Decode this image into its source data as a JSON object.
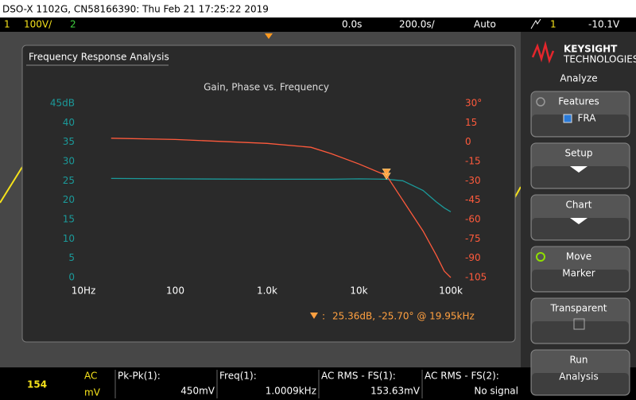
{
  "header": {
    "title": "DSO-X 1102G, CN58166390: Thu Feb 21 17:25:22 2019"
  },
  "status_bar": {
    "channel1": "1",
    "scale1": "100V/",
    "channel2": "2",
    "time_offset": "0.0s",
    "time_scale": "200.0s/",
    "trigger_mode": "Auto",
    "trigger_source": "1",
    "trigger_level": "-10.1V"
  },
  "window": {
    "title": "Frequency Response Analysis"
  },
  "chart_data": {
    "type": "line",
    "title": "Gain, Phase vs. Frequency",
    "x": [
      20,
      100,
      1000,
      3000,
      5000,
      10000,
      20000,
      30000,
      50000,
      70000,
      85000,
      100000
    ],
    "log_x": true,
    "xlim": [
      10,
      100000
    ],
    "xticks": [
      {
        "value": 10,
        "label": "10Hz"
      },
      100,
      {
        "value": 1000,
        "label": "1.0k"
      },
      {
        "value": 10000,
        "label": "10k"
      },
      {
        "value": 100000,
        "label": "100k"
      }
    ],
    "ylim": [
      0,
      45
    ],
    "yticks": [
      0,
      5,
      10,
      15,
      20,
      25,
      30,
      35,
      40,
      {
        "value": 45,
        "label": "45dB"
      }
    ],
    "y2lim": [
      -105,
      30
    ],
    "y2ticks": [
      -105,
      -90,
      -75,
      -60,
      -45,
      -30,
      -15,
      0,
      15,
      {
        "value": 30,
        "label": "30°"
      }
    ],
    "series": [
      {
        "color": "#1b9a9a",
        "axis": "y",
        "values": [
          25.6,
          25.5,
          25.4,
          25.4,
          25.4,
          25.5,
          25.4,
          25.0,
          22.5,
          19.5,
          18.0,
          17.0
        ]
      },
      {
        "color": "#ff5a3c",
        "axis": "y2",
        "values": [
          3,
          2,
          -1,
          -4,
          -9,
          -17,
          -26,
          -45,
          -69,
          -88,
          -100,
          -105
        ]
      }
    ],
    "marker": {
      "x": 19950,
      "gain": 25.36,
      "phase": -25.7,
      "color": "#ffa040",
      "label": "25.36dB, -25.70° @ 19.95kHz"
    },
    "grid": false
  },
  "sidebar": {
    "brand": "KEYSIGHT",
    "brand_sub": "TECHNOLOGIES",
    "menu_title": "Analyze",
    "buttons": [
      {
        "label": "Features",
        "sub": "FRA"
      },
      {
        "label": "Setup"
      },
      {
        "label": "Chart"
      },
      {
        "label": "Move",
        "sub": "Marker"
      },
      {
        "label": "Transparent"
      },
      {
        "label": "Run",
        "sub": "Analysis"
      }
    ]
  },
  "readout": {
    "value": "154",
    "coupling": "AC",
    "unit": "mV"
  },
  "measurements": [
    {
      "label": "Pk-Pk(1):",
      "value": "450mV"
    },
    {
      "label": "Freq(1):",
      "value": "1.0009kHz"
    },
    {
      "label": "AC RMS - FS(1):",
      "value": "153.63mV"
    },
    {
      "label": "AC RMS - FS(2):",
      "value": "No signal"
    }
  ]
}
